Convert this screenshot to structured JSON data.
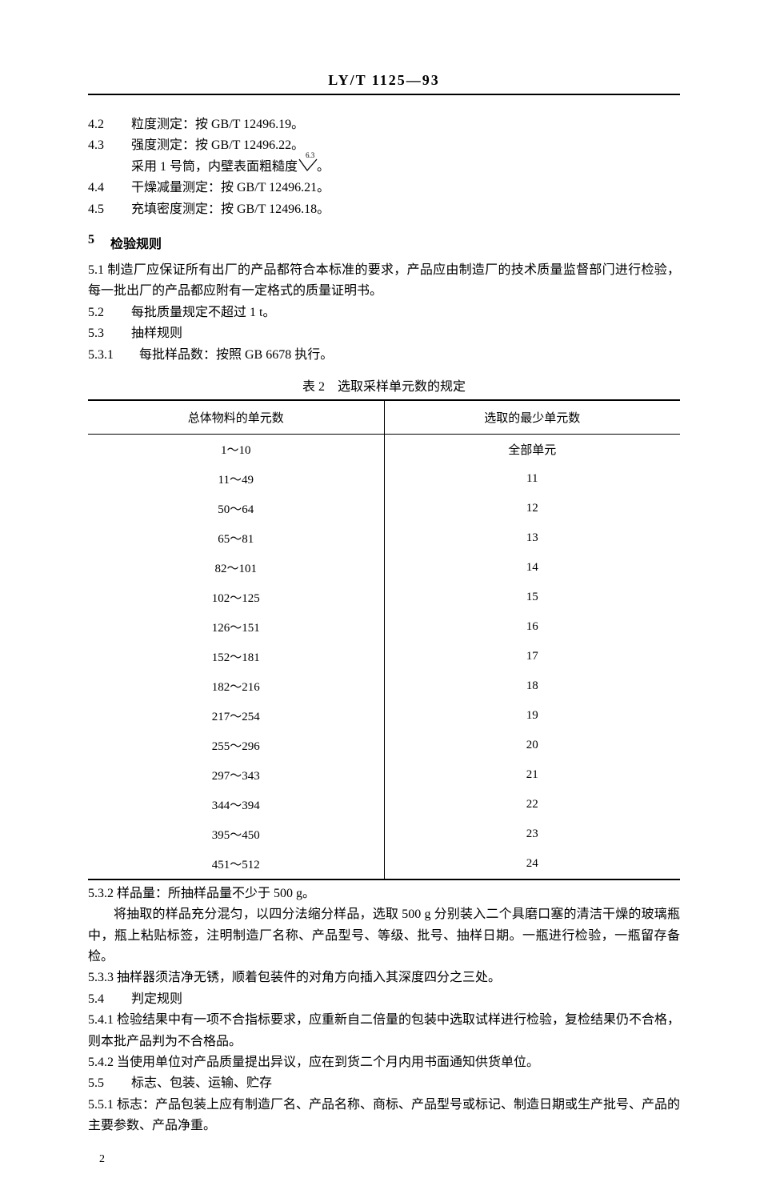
{
  "header": {
    "standard_code": "LY/T 1125—93"
  },
  "items": {
    "p4_2": {
      "num": "4.2",
      "text": "粒度测定：按 GB/T 12496.19。"
    },
    "p4_3": {
      "num": "4.3",
      "text": "强度测定：按 GB/T 12496.22。"
    },
    "p4_3_sub": "采用 1 号筒，内壁表面粗糙度",
    "p4_3_sub_tail": "。",
    "roughness_value": "6.3",
    "p4_4": {
      "num": "4.4",
      "text": "干燥减量测定：按 GB/T 12496.21。"
    },
    "p4_5": {
      "num": "4.5",
      "text": "充填密度测定：按 GB/T 12496.18。"
    },
    "s5": {
      "num": "5",
      "text": "检验规则"
    },
    "p5_1": {
      "num": "5.1",
      "text": "制造厂应保证所有出厂的产品都符合本标准的要求，产品应由制造厂的技术质量监督部门进行检验，每一批出厂的产品都应附有一定格式的质量证明书。"
    },
    "p5_2": {
      "num": "5.2",
      "text": "每批质量规定不超过 1 t。"
    },
    "p5_3": {
      "num": "5.3",
      "text": "抽样规则"
    },
    "p5_3_1": {
      "num": "5.3.1",
      "text": "每批样品数：按照 GB 6678 执行。"
    },
    "table_caption": "表 2　选取采样单元数的规定",
    "p5_3_2": {
      "num": "5.3.2",
      "text": "样品量：所抽样品量不少于 500 g。"
    },
    "p5_3_2_sub": "将抽取的样品充分混匀，以四分法缩分样品，选取 500 g 分别装入二个具磨口塞的清洁干燥的玻璃瓶中，瓶上粘贴标签，注明制造厂名称、产品型号、等级、批号、抽样日期。一瓶进行检验，一瓶留存备检。",
    "p5_3_3": {
      "num": "5.3.3",
      "text": "抽样器须洁净无锈，顺着包装件的对角方向插入其深度四分之三处。"
    },
    "p5_4": {
      "num": "5.4",
      "text": "判定规则"
    },
    "p5_4_1": {
      "num": "5.4.1",
      "text": "检验结果中有一项不合指标要求，应重新自二倍量的包装中选取试样进行检验，复检结果仍不合格，则本批产品判为不合格品。"
    },
    "p5_4_2": {
      "num": "5.4.2",
      "text": "当使用单位对产品质量提出异议，应在到货二个月内用书面通知供货单位。"
    },
    "p5_5": {
      "num": "5.5",
      "text": "标志、包装、运输、贮存"
    },
    "p5_5_1": {
      "num": "5.5.1",
      "text": "标志：产品包装上应有制造厂名、产品名称、商标、产品型号或标记、制造日期或生产批号、产品的主要参数、产品净重。"
    }
  },
  "table": {
    "columns": [
      "总体物料的单元数",
      "选取的最少单元数"
    ],
    "rows": [
      [
        "1～10",
        "全部单元"
      ],
      [
        "11～49",
        "11"
      ],
      [
        "50～64",
        "12"
      ],
      [
        "65～81",
        "13"
      ],
      [
        "82～101",
        "14"
      ],
      [
        "102～125",
        "15"
      ],
      [
        "126～151",
        "16"
      ],
      [
        "152～181",
        "17"
      ],
      [
        "182～216",
        "18"
      ],
      [
        "217～254",
        "19"
      ],
      [
        "255～296",
        "20"
      ],
      [
        "297～343",
        "21"
      ],
      [
        "344～394",
        "22"
      ],
      [
        "395～450",
        "23"
      ],
      [
        "451～512",
        "24"
      ]
    ]
  },
  "page_number": "2"
}
